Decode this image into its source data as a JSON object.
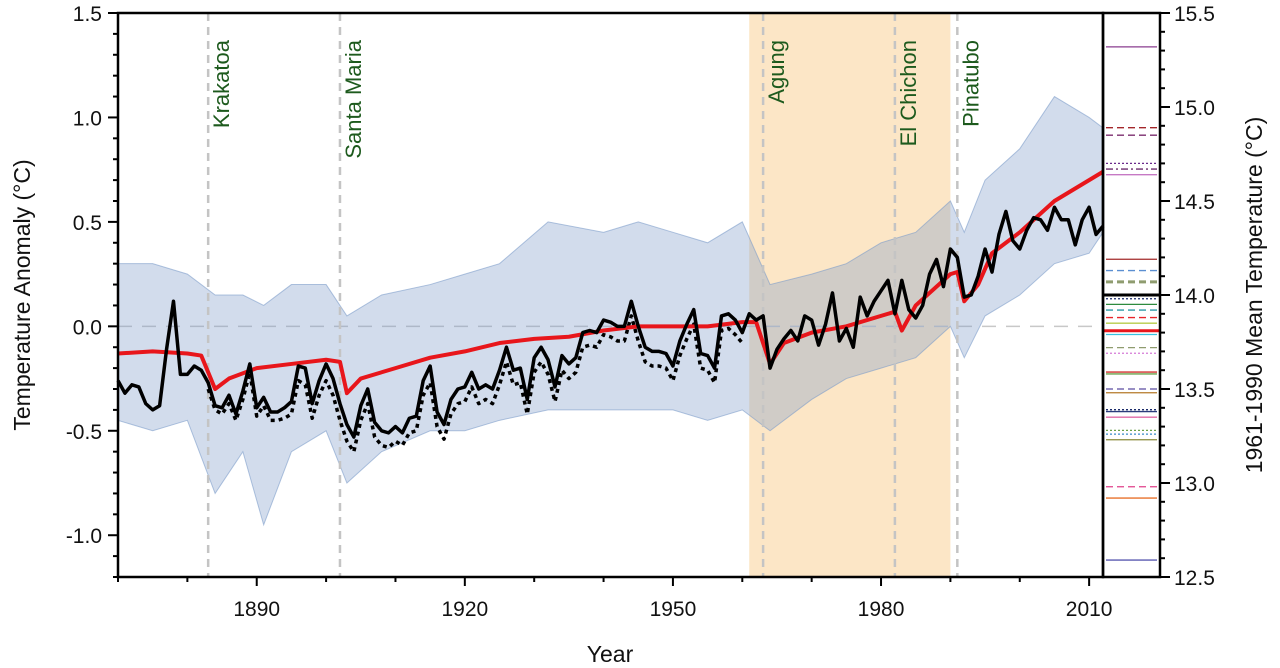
{
  "chart_data": {
    "type": "line",
    "xlabel": "Year",
    "ylabel": "Temperature Anomaly (°C)",
    "ylabel_right": "1961-1990 Mean Temperature (°C)",
    "xlim": [
      1870,
      2012
    ],
    "ylim": [
      -1.2,
      1.5
    ],
    "ylim_right": [
      12.5,
      15.5
    ],
    "x_ticks": [
      1890,
      1920,
      1950,
      1980,
      2010
    ],
    "y_ticks": [
      "-1.0",
      "-0.5",
      "0.0",
      "0.5",
      "1.0",
      "1.5"
    ],
    "y_ticks_right": [
      "12.5",
      "13.0",
      "13.5",
      "14.0",
      "14.5",
      "15.0",
      "15.5"
    ],
    "grid": false,
    "reference_period": {
      "start": 1961,
      "end": 1990,
      "color": "#fce6c6"
    },
    "volcanoes": [
      {
        "name": "Krakatoa",
        "year": 1883
      },
      {
        "name": "Santa Maria",
        "year": 1902
      },
      {
        "name": "Agung",
        "year": 1963
      },
      {
        "name": "El Chichon",
        "year": 1982
      },
      {
        "name": "Pinatubo",
        "year": 1991
      }
    ],
    "colors": {
      "observations": "#000000",
      "multi_model_mean": "#e8161b",
      "volcano_label": "#1d5a1d",
      "model_spread": "#7d9cc9"
    },
    "model_spread": {
      "years": [
        1870,
        1875,
        1880,
        1884,
        1888,
        1891,
        1895,
        1900,
        1903,
        1908,
        1915,
        1920,
        1925,
        1932,
        1940,
        1945,
        1950,
        1955,
        1960,
        1964,
        1970,
        1975,
        1980,
        1985,
        1990,
        1992,
        1995,
        2000,
        2005,
        2010,
        2012
      ],
      "low": [
        -0.45,
        -0.5,
        -0.45,
        -0.8,
        -0.6,
        -0.95,
        -0.6,
        -0.5,
        -0.75,
        -0.6,
        -0.5,
        -0.5,
        -0.45,
        -0.4,
        -0.4,
        -0.4,
        -0.4,
        -0.45,
        -0.4,
        -0.5,
        -0.35,
        -0.25,
        -0.2,
        -0.15,
        0.0,
        -0.15,
        0.05,
        0.15,
        0.3,
        0.35,
        0.45
      ],
      "high": [
        0.3,
        0.3,
        0.25,
        0.15,
        0.15,
        0.1,
        0.2,
        0.2,
        0.05,
        0.15,
        0.2,
        0.25,
        0.3,
        0.5,
        0.45,
        0.5,
        0.45,
        0.4,
        0.5,
        0.2,
        0.25,
        0.3,
        0.4,
        0.45,
        0.6,
        0.45,
        0.7,
        0.85,
        1.1,
        1.0,
        0.95
      ]
    },
    "multi_model_mean": {
      "years": [
        1870,
        1875,
        1880,
        1882,
        1884,
        1886,
        1890,
        1895,
        1900,
        1902,
        1903,
        1905,
        1910,
        1915,
        1920,
        1925,
        1930,
        1935,
        1940,
        1945,
        1950,
        1955,
        1960,
        1962,
        1964,
        1966,
        1970,
        1975,
        1980,
        1982,
        1983,
        1985,
        1990,
        1991,
        1992,
        1994,
        1996,
        2000,
        2005,
        2010,
        2012
      ],
      "values": [
        -0.13,
        -0.12,
        -0.13,
        -0.14,
        -0.3,
        -0.25,
        -0.2,
        -0.18,
        -0.16,
        -0.17,
        -0.32,
        -0.25,
        -0.2,
        -0.15,
        -0.12,
        -0.08,
        -0.06,
        -0.05,
        -0.02,
        0.0,
        0.0,
        0.0,
        0.02,
        0.02,
        -0.18,
        -0.08,
        -0.03,
        0.0,
        0.05,
        0.07,
        -0.02,
        0.1,
        0.25,
        0.26,
        0.12,
        0.2,
        0.35,
        0.45,
        0.6,
        0.7,
        0.74
      ]
    },
    "observations": {
      "start_year": 1870,
      "values": [
        -0.26,
        -0.32,
        -0.28,
        -0.29,
        -0.37,
        -0.4,
        -0.38,
        -0.11,
        0.12,
        -0.23,
        -0.23,
        -0.19,
        -0.21,
        -0.27,
        -0.38,
        -0.39,
        -0.33,
        -0.42,
        -0.31,
        -0.18,
        -0.39,
        -0.34,
        -0.41,
        -0.41,
        -0.39,
        -0.36,
        -0.19,
        -0.2,
        -0.37,
        -0.26,
        -0.18,
        -0.25,
        -0.37,
        -0.47,
        -0.53,
        -0.38,
        -0.3,
        -0.46,
        -0.5,
        -0.51,
        -0.48,
        -0.51,
        -0.44,
        -0.43,
        -0.26,
        -0.19,
        -0.41,
        -0.47,
        -0.35,
        -0.3,
        -0.29,
        -0.22,
        -0.3,
        -0.28,
        -0.3,
        -0.21,
        -0.1,
        -0.21,
        -0.2,
        -0.35,
        -0.15,
        -0.1,
        -0.16,
        -0.29,
        -0.14,
        -0.18,
        -0.15,
        -0.03,
        -0.02,
        -0.03,
        0.03,
        0.02,
        0.0,
        0.0,
        0.12,
        0.0,
        -0.1,
        -0.12,
        -0.12,
        -0.13,
        -0.19,
        -0.07,
        0.01,
        0.08,
        -0.13,
        -0.14,
        -0.2,
        0.05,
        0.06,
        0.03,
        -0.03,
        0.06,
        0.03,
        0.05,
        -0.2,
        -0.11,
        -0.06,
        -0.02,
        -0.07,
        0.05,
        0.03,
        -0.09,
        0.01,
        0.16,
        -0.07,
        -0.01,
        -0.1,
        0.14,
        0.05,
        0.12,
        0.17,
        0.22,
        0.06,
        0.22,
        0.08,
        0.04,
        0.1,
        0.25,
        0.32,
        0.19,
        0.37,
        0.33,
        0.14,
        0.15,
        0.24,
        0.37,
        0.26,
        0.44,
        0.55,
        0.41,
        0.37,
        0.46,
        0.52,
        0.51,
        0.46,
        0.57,
        0.51,
        0.51,
        0.39,
        0.51,
        0.57,
        0.44,
        0.48
      ]
    },
    "observations_dotted": {
      "start_year": 1883,
      "values": [
        -0.3,
        -0.4,
        -0.42,
        -0.37,
        -0.45,
        -0.35,
        -0.22,
        -0.43,
        -0.38,
        -0.45,
        -0.45,
        -0.44,
        -0.42,
        -0.26,
        -0.28,
        -0.44,
        -0.33,
        -0.26,
        -0.33,
        -0.45,
        -0.55,
        -0.6,
        -0.45,
        -0.37,
        -0.53,
        -0.57,
        -0.58,
        -0.55,
        -0.57,
        -0.51,
        -0.5,
        -0.33,
        -0.27,
        -0.48,
        -0.54,
        -0.42,
        -0.37,
        -0.36,
        -0.29,
        -0.37,
        -0.35,
        -0.37,
        -0.28,
        -0.17,
        -0.28,
        -0.27,
        -0.42,
        -0.22,
        -0.17,
        -0.23,
        -0.36,
        -0.21,
        -0.25,
        -0.22,
        -0.1,
        -0.09,
        -0.1,
        -0.04,
        -0.05,
        -0.07,
        -0.07,
        0.05,
        -0.07,
        -0.17,
        -0.19,
        -0.19,
        -0.2,
        -0.26,
        -0.14,
        -0.06,
        0.01,
        -0.2,
        -0.21,
        -0.27,
        -0.02,
        -0.01,
        -0.04,
        -0.08
      ]
    },
    "model_mean_temperatures": [
      {
        "value": 15.32,
        "color": "#8a3d8f",
        "dash": "solid"
      },
      {
        "value": 14.89,
        "color": "#a3262a",
        "dash": "dashed"
      },
      {
        "value": 14.85,
        "color": "#7b2c6e",
        "dash": "dashed"
      },
      {
        "value": 14.7,
        "color": "#6a2a8c",
        "dash": "dotted"
      },
      {
        "value": 14.67,
        "color": "#6a2a6c",
        "dash": "dashdot"
      },
      {
        "value": 14.64,
        "color": "#c679c4",
        "dash": "solid"
      },
      {
        "value": 14.19,
        "color": "#a32a2a",
        "dash": "solid"
      },
      {
        "value": 14.13,
        "color": "#5b8fd1",
        "dash": "dashed"
      },
      {
        "value": 14.07,
        "color": "#8f9c6f",
        "dash": "thickdashed"
      },
      {
        "value": 14.0,
        "color": "#000000",
        "dash": "thick"
      },
      {
        "value": 13.98,
        "color": "#1c2c6b",
        "dash": "dotted"
      },
      {
        "value": 13.95,
        "color": "#2e8b3e",
        "dash": "solid"
      },
      {
        "value": 13.92,
        "color": "#2a9aa6",
        "dash": "dashed"
      },
      {
        "value": 13.88,
        "color": "#e8252a",
        "dash": "dashed"
      },
      {
        "value": 13.85,
        "color": "#b7cc4a",
        "dash": "solid"
      },
      {
        "value": 13.81,
        "color": "#e8161b",
        "dash": "thick"
      },
      {
        "value": 13.79,
        "color": "#39c1e0",
        "dash": "solid"
      },
      {
        "value": 13.72,
        "color": "#8f9c6f",
        "dash": "dashed"
      },
      {
        "value": 13.69,
        "color": "#d57ad6",
        "dash": "dotted"
      },
      {
        "value": 13.59,
        "color": "#d0302c",
        "dash": "solid"
      },
      {
        "value": 13.58,
        "color": "#6aa04a",
        "dash": "solid"
      },
      {
        "value": 13.5,
        "color": "#5a4ca0",
        "dash": "dashed"
      },
      {
        "value": 13.48,
        "color": "#b57a2a",
        "dash": "solid"
      },
      {
        "value": 13.39,
        "color": "#1c2c6b",
        "dash": "dotted"
      },
      {
        "value": 13.38,
        "color": "#2b3b7b",
        "dash": "solid"
      },
      {
        "value": 13.35,
        "color": "#e06aa6",
        "dash": "solid"
      },
      {
        "value": 13.28,
        "color": "#6aa04a",
        "dash": "dotted"
      },
      {
        "value": 13.26,
        "color": "#3a8ac9",
        "dash": "dotted"
      },
      {
        "value": 13.23,
        "color": "#8a8a3a",
        "dash": "solid"
      },
      {
        "value": 12.98,
        "color": "#e0408a",
        "dash": "dashed"
      },
      {
        "value": 12.92,
        "color": "#e8702a",
        "dash": "solid"
      },
      {
        "value": 12.59,
        "color": "#5a5ab0",
        "dash": "solid"
      }
    ]
  }
}
